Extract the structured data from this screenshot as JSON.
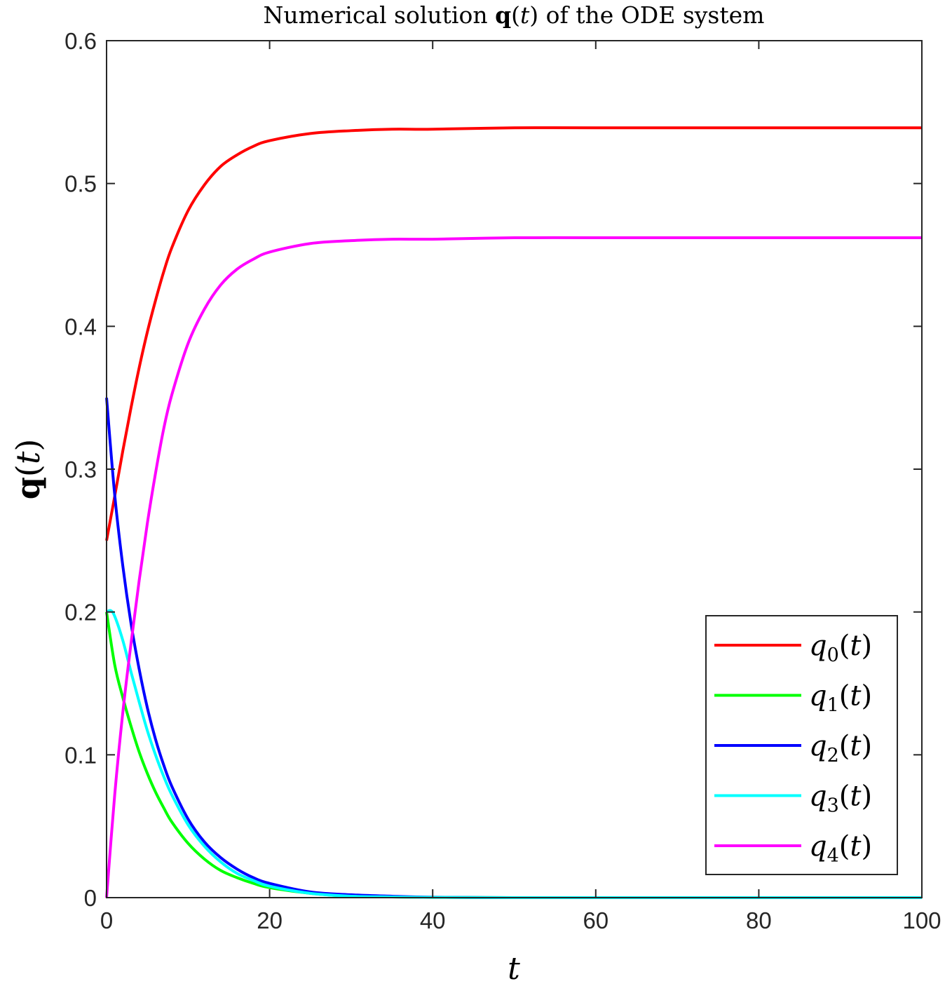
{
  "chart_data": {
    "type": "line",
    "title": {
      "pre": "Numerical solution ",
      "bold": "q",
      "paren_open": "(",
      "var": "t",
      "paren_close": ")",
      "post": " of the ODE system"
    },
    "xlabel": "t",
    "ylabel": {
      "bold": "q",
      "paren_open": "(",
      "var": "t",
      "paren_close": ")"
    },
    "xlim": [
      0,
      100
    ],
    "ylim": [
      0,
      0.6
    ],
    "xticks": [
      "0",
      "20",
      "40",
      "60",
      "80",
      "100"
    ],
    "yticks": [
      "0",
      "0.1",
      "0.2",
      "0.3",
      "0.4",
      "0.5",
      "0.6"
    ],
    "grid": false,
    "legend_position": "bottom-right",
    "series": [
      {
        "name": {
          "base": "q",
          "sub": "0",
          "paren_open": "(",
          "var": "t",
          "paren_close": ")"
        },
        "color": "#ff0000",
        "x": [
          0,
          1,
          2,
          3,
          4,
          5,
          6,
          7,
          8,
          10,
          12,
          14,
          16,
          18,
          20,
          25,
          30,
          35,
          40,
          50,
          60,
          70,
          80,
          90,
          100
        ],
        "y": [
          0.25,
          0.281,
          0.313,
          0.343,
          0.371,
          0.396,
          0.418,
          0.438,
          0.455,
          0.481,
          0.499,
          0.512,
          0.52,
          0.526,
          0.53,
          0.535,
          0.537,
          0.538,
          0.538,
          0.539,
          0.539,
          0.539,
          0.539,
          0.539,
          0.539
        ]
      },
      {
        "name": {
          "base": "q",
          "sub": "1",
          "paren_open": "(",
          "var": "t",
          "paren_close": ")"
        },
        "color": "#00ff00",
        "x": [
          0,
          1,
          2,
          3,
          4,
          5,
          6,
          7,
          8,
          10,
          12,
          14,
          16,
          18,
          20,
          25,
          30,
          35,
          40,
          50,
          60,
          70,
          80,
          90,
          100
        ],
        "y": [
          0.2,
          0.163,
          0.14,
          0.12,
          0.102,
          0.087,
          0.074,
          0.063,
          0.053,
          0.038,
          0.027,
          0.019,
          0.014,
          0.01,
          0.007,
          0.003,
          0.001,
          0.0005,
          0.0002,
          0.0,
          0.0,
          0.0,
          0.0,
          0.0,
          0.0
        ]
      },
      {
        "name": {
          "base": "q",
          "sub": "2",
          "paren_open": "(",
          "var": "t",
          "paren_close": ")"
        },
        "color": "#0000ff",
        "x": [
          0,
          1,
          2,
          3,
          4,
          5,
          6,
          7,
          8,
          10,
          12,
          14,
          16,
          18,
          20,
          25,
          30,
          35,
          40,
          50,
          60,
          70,
          80,
          90,
          100
        ],
        "y": [
          0.35,
          0.282,
          0.232,
          0.192,
          0.16,
          0.133,
          0.111,
          0.093,
          0.078,
          0.055,
          0.039,
          0.028,
          0.02,
          0.014,
          0.01,
          0.004,
          0.002,
          0.001,
          0.0003,
          0.0,
          0.0,
          0.0,
          0.0,
          0.0,
          0.0
        ]
      },
      {
        "name": {
          "base": "q",
          "sub": "3",
          "paren_open": "(",
          "var": "t",
          "paren_close": ")"
        },
        "color": "#00ffff",
        "x": [
          0,
          0.5,
          1,
          2,
          3,
          4,
          5,
          6,
          7,
          8,
          10,
          12,
          14,
          16,
          18,
          20,
          25,
          30,
          35,
          40,
          50,
          60,
          70,
          80,
          90,
          100
        ],
        "y": [
          0.2,
          0.201,
          0.197,
          0.18,
          0.158,
          0.137,
          0.117,
          0.1,
          0.085,
          0.072,
          0.051,
          0.036,
          0.025,
          0.017,
          0.012,
          0.008,
          0.003,
          0.001,
          0.0005,
          0.0002,
          0.0,
          0.0,
          0.0,
          0.0,
          0.0,
          0.0
        ]
      },
      {
        "name": {
          "base": "q",
          "sub": "4",
          "paren_open": "(",
          "var": "t",
          "paren_close": ")"
        },
        "color": "#ff00ff",
        "x": [
          0,
          1,
          2,
          3,
          4,
          5,
          6,
          7,
          8,
          10,
          12,
          14,
          16,
          18,
          20,
          25,
          30,
          35,
          40,
          50,
          60,
          70,
          80,
          90,
          100
        ],
        "y": [
          0.0,
          0.072,
          0.13,
          0.178,
          0.222,
          0.262,
          0.297,
          0.328,
          0.352,
          0.388,
          0.412,
          0.429,
          0.44,
          0.447,
          0.452,
          0.458,
          0.46,
          0.461,
          0.461,
          0.462,
          0.462,
          0.462,
          0.462,
          0.462,
          0.462
        ]
      }
    ]
  }
}
